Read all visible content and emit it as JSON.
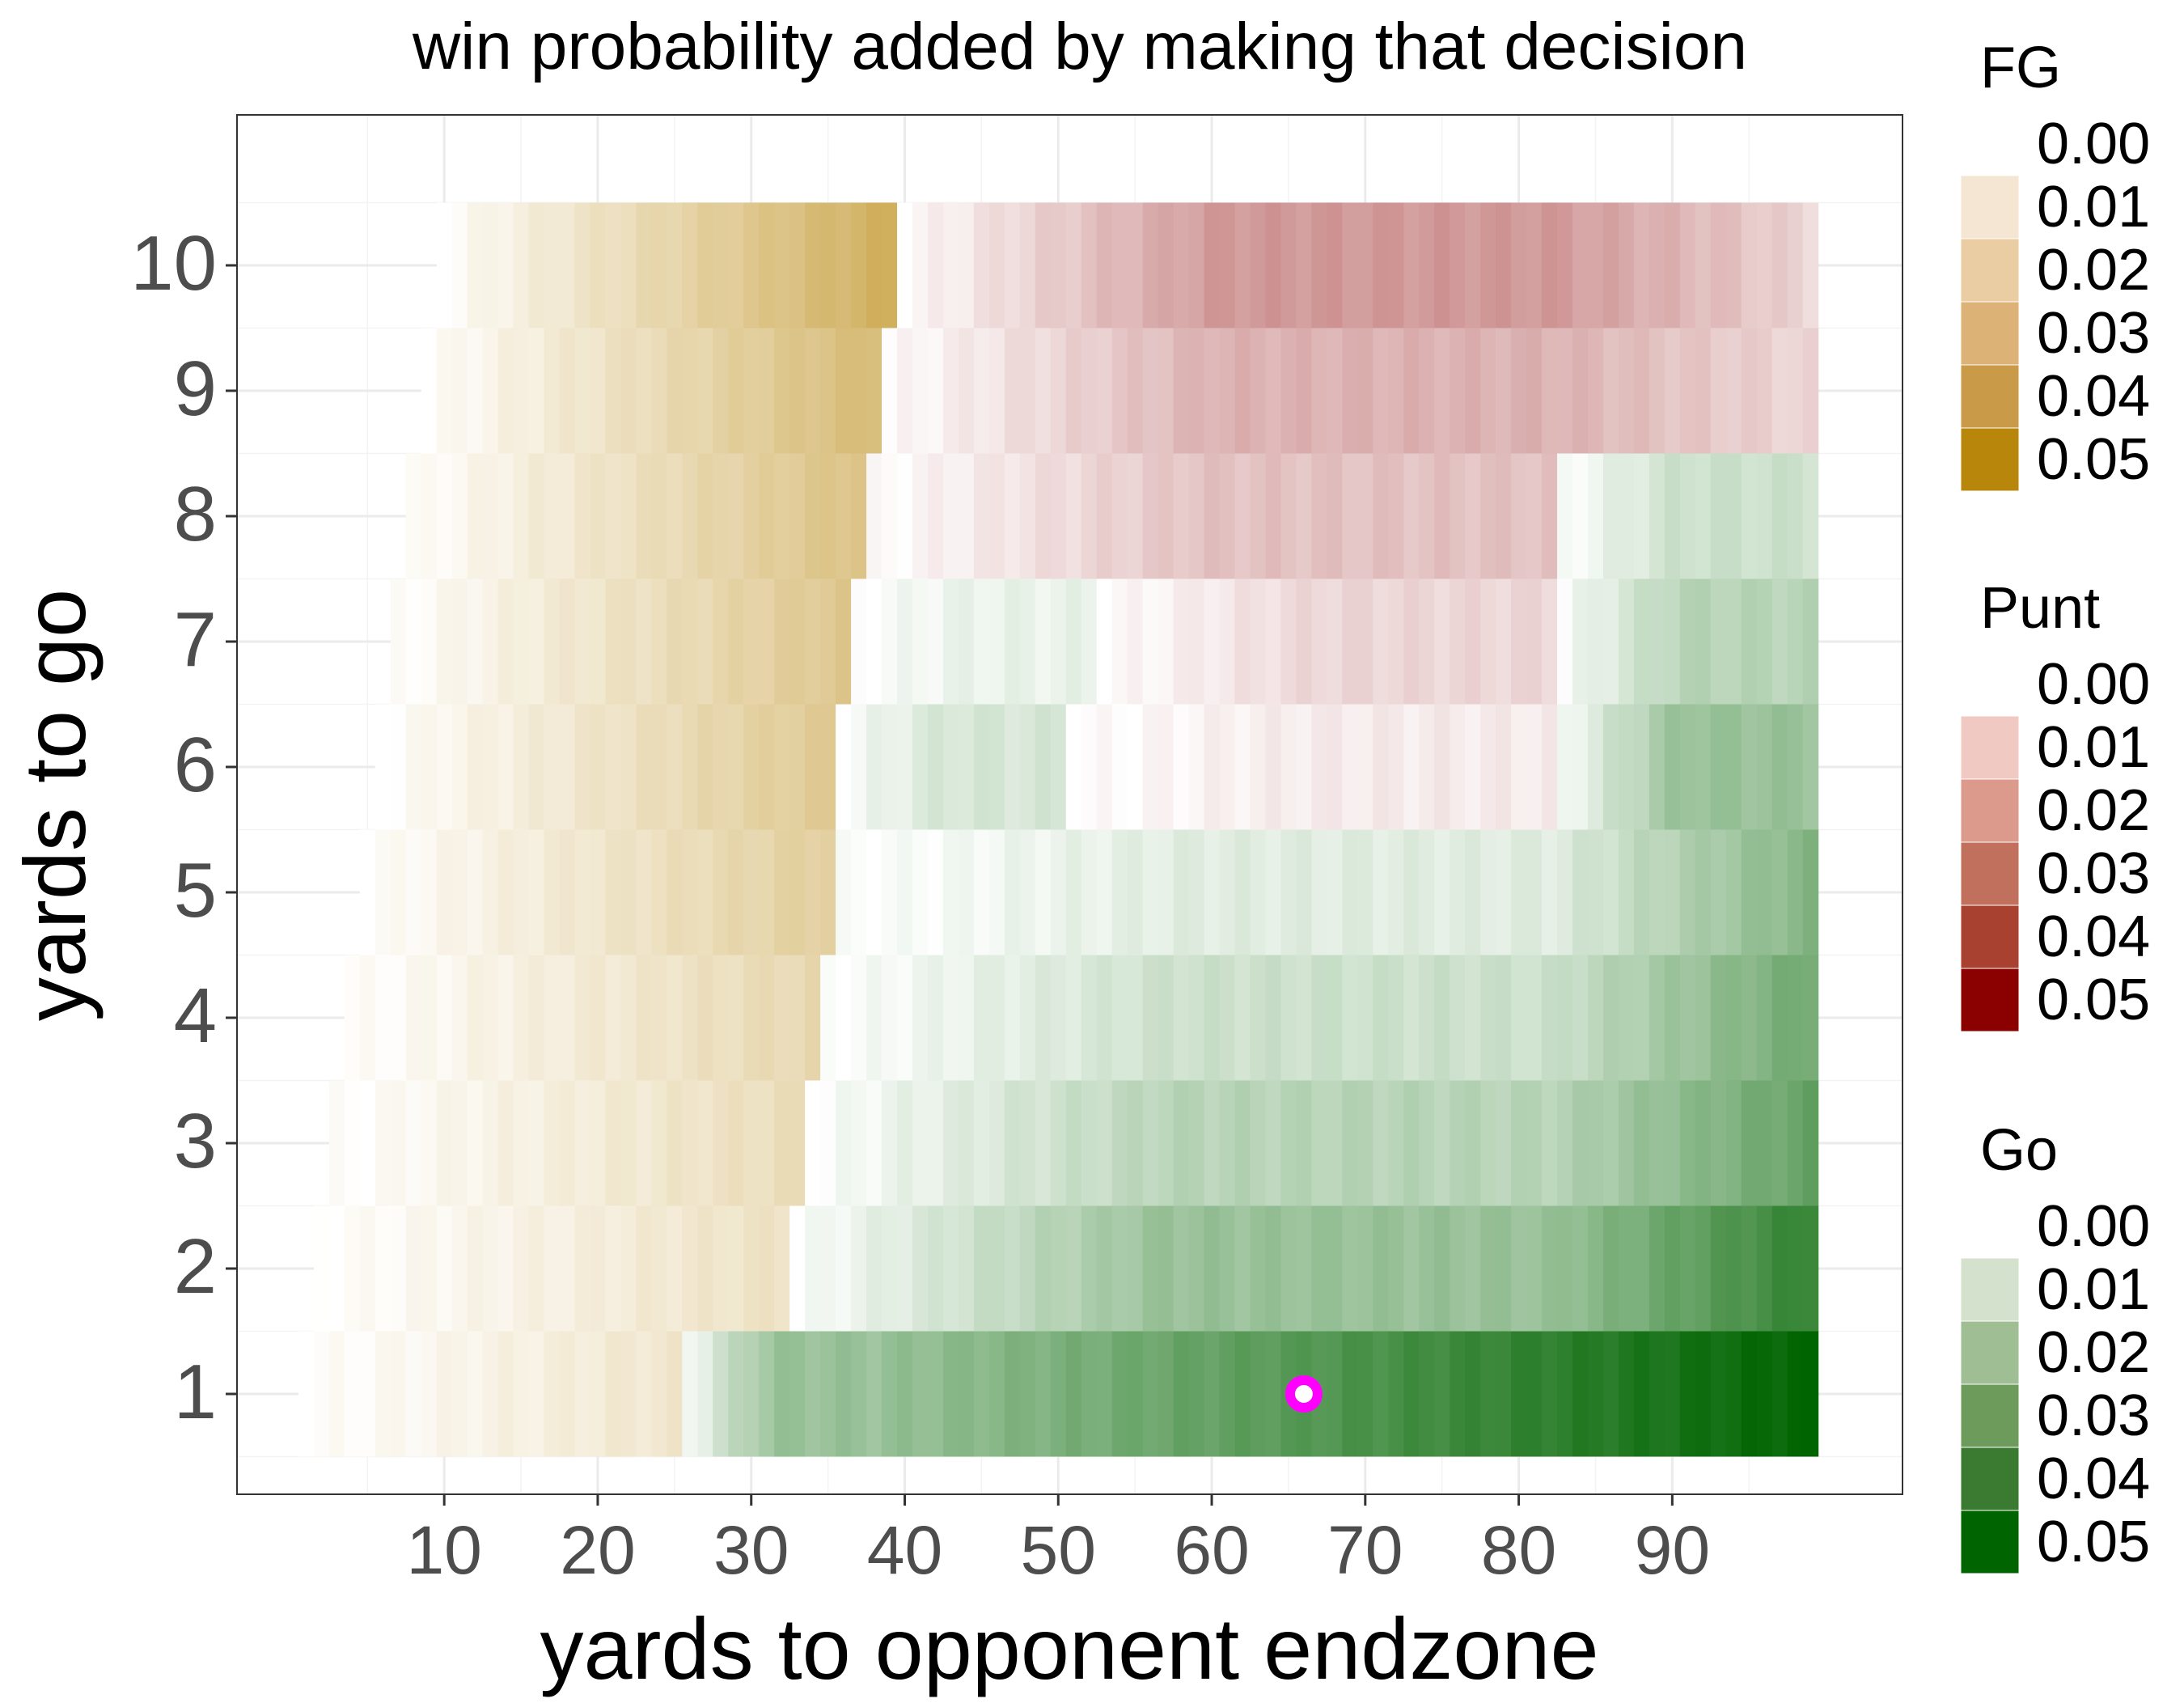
{
  "chart_data": {
    "type": "heatmap",
    "title": "win probability added by making that decision",
    "xlabel": "yards to opponent endzone",
    "ylabel": "yards to go",
    "x_ticks": [
      10,
      20,
      30,
      40,
      50,
      60,
      70,
      80,
      90
    ],
    "y_ticks": [
      1,
      2,
      3,
      4,
      5,
      6,
      7,
      8,
      9,
      10
    ],
    "xlim": [
      -3.5,
      105
    ],
    "ylim": [
      0.2,
      11.2
    ],
    "grid": true,
    "legend_position": "right",
    "x_max": 99,
    "rows": [
      {
        "ytg": 1,
        "x_start": 1,
        "segments": [
          {
            "to": 25,
            "decision": "FG",
            "wpa": 0.01
          },
          {
            "to": 38,
            "decision": "Go",
            "wpa": 0.02
          },
          {
            "to": 80,
            "decision": "Go",
            "wpa": 0.04
          },
          {
            "to": 99,
            "decision": "Go",
            "wpa": 0.05
          }
        ]
      },
      {
        "ytg": 2,
        "x_start": 2,
        "segments": [
          {
            "to": 32,
            "decision": "FG",
            "wpa": 0.012
          },
          {
            "to": 82,
            "decision": "Go",
            "wpa": 0.02
          },
          {
            "to": 99,
            "decision": "Go",
            "wpa": 0.04
          }
        ]
      },
      {
        "ytg": 3,
        "x_start": 3,
        "segments": [
          {
            "to": 33,
            "decision": "FG",
            "wpa": 0.014
          },
          {
            "to": 82,
            "decision": "Go",
            "wpa": 0.014
          },
          {
            "to": 99,
            "decision": "Go",
            "wpa": 0.03
          }
        ]
      },
      {
        "ytg": 4,
        "x_start": 4,
        "segments": [
          {
            "to": 34,
            "decision": "FG",
            "wpa": 0.016
          },
          {
            "to": 82,
            "decision": "Go",
            "wpa": 0.01
          },
          {
            "to": 99,
            "decision": "Go",
            "wpa": 0.028
          }
        ]
      },
      {
        "ytg": 5,
        "x_start": 5,
        "segments": [
          {
            "to": 35,
            "decision": "FG",
            "wpa": 0.02
          },
          {
            "to": 82,
            "decision": "Go",
            "wpa": 0.006
          },
          {
            "to": 99,
            "decision": "Go",
            "wpa": 0.024
          }
        ]
      },
      {
        "ytg": 6,
        "x_start": 6,
        "segments": [
          {
            "to": 35,
            "decision": "FG",
            "wpa": 0.022
          },
          {
            "to": 50,
            "decision": "Go",
            "wpa": 0.008
          },
          {
            "to": 82,
            "decision": "Punt",
            "wpa": 0.004
          },
          {
            "to": 99,
            "decision": "Go",
            "wpa": 0.02
          }
        ]
      },
      {
        "ytg": 7,
        "x_start": 7,
        "segments": [
          {
            "to": 36,
            "decision": "FG",
            "wpa": 0.023
          },
          {
            "to": 52,
            "decision": "Go",
            "wpa": 0.004
          },
          {
            "to": 82,
            "decision": "Punt",
            "wpa": 0.008
          },
          {
            "to": 99,
            "decision": "Go",
            "wpa": 0.014
          }
        ]
      },
      {
        "ytg": 8,
        "x_start": 8,
        "segments": [
          {
            "to": 37,
            "decision": "FG",
            "wpa": 0.025
          },
          {
            "to": 82,
            "decision": "Punt",
            "wpa": 0.012
          },
          {
            "to": 99,
            "decision": "Go",
            "wpa": 0.01
          }
        ]
      },
      {
        "ytg": 9,
        "x_start": 9,
        "segments": [
          {
            "to": 38,
            "decision": "FG",
            "wpa": 0.028
          },
          {
            "to": 82,
            "decision": "Punt",
            "wpa": 0.015
          },
          {
            "to": 94,
            "decision": "Punt",
            "wpa": 0.01
          },
          {
            "to": 99,
            "decision": "Punt",
            "wpa": 0.008
          }
        ]
      },
      {
        "ytg": 10,
        "x_start": 10,
        "segments": [
          {
            "to": 39,
            "decision": "FG",
            "wpa": 0.033
          },
          {
            "to": 82,
            "decision": "Punt",
            "wpa": 0.02
          },
          {
            "to": 94,
            "decision": "Punt",
            "wpa": 0.012
          },
          {
            "to": 99,
            "decision": "Punt",
            "wpa": 0.008
          }
        ]
      }
    ],
    "highlight_point": {
      "x": 66,
      "y": 1,
      "ring_color": "#ff00ff",
      "fill_color": "#ffffff"
    },
    "legends": [
      {
        "title": "FG",
        "labels": [
          "0.00",
          "0.01",
          "0.02",
          "0.03",
          "0.04",
          "0.05"
        ],
        "colors": [
          "#f5e6d3",
          "#ebcda4",
          "#dcb276",
          "#c99a48",
          "#b8860b"
        ]
      },
      {
        "title": "Punt",
        "labels": [
          "0.00",
          "0.01",
          "0.02",
          "0.03",
          "0.04",
          "0.05"
        ],
        "colors": [
          "#f0c9c2",
          "#dc9a8c",
          "#c2705e",
          "#a8412f",
          "#8b0000"
        ]
      },
      {
        "title": "Go",
        "labels": [
          "0.00",
          "0.01",
          "0.02",
          "0.03",
          "0.04",
          "0.05"
        ],
        "colors": [
          "#d3e1cd",
          "#9fbe94",
          "#6c9b5c",
          "#3b7b31",
          "#006400"
        ]
      }
    ]
  }
}
